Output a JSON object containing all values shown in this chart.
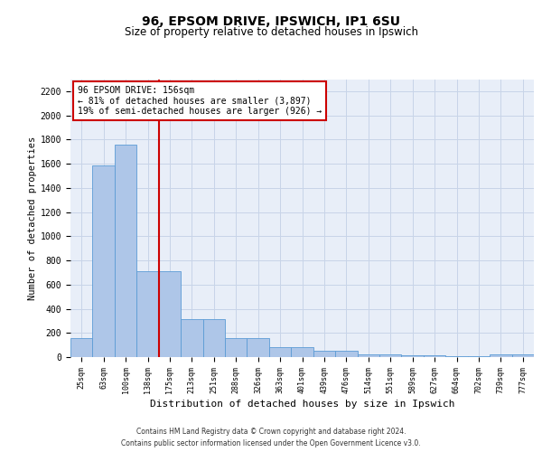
{
  "title1": "96, EPSOM DRIVE, IPSWICH, IP1 6SU",
  "title2": "Size of property relative to detached houses in Ipswich",
  "xlabel": "Distribution of detached houses by size in Ipswich",
  "ylabel": "Number of detached properties",
  "categories": [
    "25sqm",
    "63sqm",
    "100sqm",
    "138sqm",
    "175sqm",
    "213sqm",
    "251sqm",
    "288sqm",
    "326sqm",
    "363sqm",
    "401sqm",
    "439sqm",
    "476sqm",
    "514sqm",
    "551sqm",
    "589sqm",
    "627sqm",
    "664sqm",
    "702sqm",
    "739sqm",
    "777sqm"
  ],
  "values": [
    155,
    1585,
    1755,
    710,
    710,
    315,
    315,
    160,
    160,
    85,
    85,
    50,
    50,
    25,
    25,
    15,
    15,
    8,
    8,
    25,
    25
  ],
  "bar_color": "#aec6e8",
  "bar_edge_color": "#5b9bd5",
  "vline_color": "#cc0000",
  "annotation_title": "96 EPSOM DRIVE: 156sqm",
  "annotation_line1": "← 81% of detached houses are smaller (3,897)",
  "annotation_line2": "19% of semi-detached houses are larger (926) →",
  "ylim": [
    0,
    2300
  ],
  "yticks": [
    0,
    200,
    400,
    600,
    800,
    1000,
    1200,
    1400,
    1600,
    1800,
    2000,
    2200
  ],
  "grid_color": "#c8d4e8",
  "bg_color": "#e8eef8",
  "footer1": "Contains HM Land Registry data © Crown copyright and database right 2024.",
  "footer2": "Contains public sector information licensed under the Open Government Licence v3.0."
}
